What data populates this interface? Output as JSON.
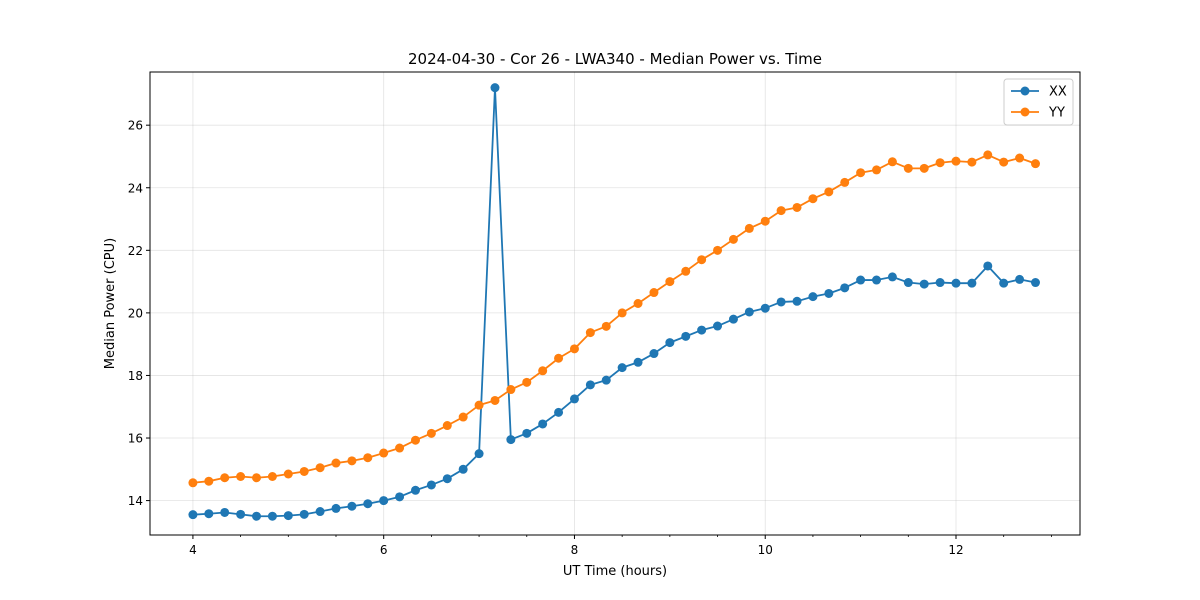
{
  "chart_data": {
    "type": "line",
    "title": "2024-04-30 - Cor 26 - LWA340 - Median Power vs. Time",
    "xlabel": "UT Time (hours)",
    "ylabel": "Median Power (CPU)",
    "xlim": [
      3.55,
      13.3
    ],
    "ylim": [
      12.9,
      27.7
    ],
    "xticks": [
      4,
      6,
      8,
      10,
      12
    ],
    "yticks": [
      14,
      16,
      18,
      20,
      22,
      24,
      26
    ],
    "grid": true,
    "legend_position": "top-right",
    "x": [
      4.0,
      4.1667,
      4.3333,
      4.5,
      4.6667,
      4.8333,
      5.0,
      5.1667,
      5.3333,
      5.5,
      5.6667,
      5.8333,
      6.0,
      6.1667,
      6.3333,
      6.5,
      6.6667,
      6.8333,
      7.0,
      7.1667,
      7.3333,
      7.5,
      7.6667,
      7.8333,
      8.0,
      8.1667,
      8.3333,
      8.5,
      8.6667,
      8.8333,
      9.0,
      9.1667,
      9.3333,
      9.5,
      9.6667,
      9.8333,
      10.0,
      10.1667,
      10.3333,
      10.5,
      10.6667,
      10.8333,
      11.0,
      11.1667,
      11.3333,
      11.5,
      11.6667,
      11.8333,
      12.0,
      12.1667,
      12.3333,
      12.5,
      12.6667,
      12.8333
    ],
    "series": [
      {
        "name": "XX",
        "color": "#1f77b4",
        "values": [
          13.55,
          13.58,
          13.62,
          13.56,
          13.5,
          13.5,
          13.52,
          13.56,
          13.65,
          13.75,
          13.82,
          13.9,
          14.0,
          14.12,
          14.33,
          14.5,
          14.7,
          15.0,
          15.5,
          27.2,
          15.95,
          16.15,
          16.45,
          16.82,
          17.25,
          17.7,
          17.85,
          18.25,
          18.42,
          18.7,
          19.05,
          19.25,
          19.45,
          19.58,
          19.8,
          20.03,
          20.15,
          20.35,
          20.37,
          20.52,
          20.62,
          20.8,
          21.05,
          21.05,
          21.15,
          20.97,
          20.92,
          20.97,
          20.95,
          20.95,
          21.5,
          20.95,
          21.07,
          20.97
        ]
      },
      {
        "name": "YY",
        "color": "#ff7f0e",
        "values": [
          14.57,
          14.62,
          14.73,
          14.77,
          14.73,
          14.77,
          14.85,
          14.93,
          15.05,
          15.2,
          15.27,
          15.37,
          15.52,
          15.68,
          15.93,
          16.15,
          16.4,
          16.67,
          17.05,
          17.2,
          17.55,
          17.78,
          18.15,
          18.55,
          18.85,
          19.37,
          19.57,
          20.0,
          20.3,
          20.65,
          21.0,
          21.33,
          21.7,
          22.0,
          22.35,
          22.7,
          22.93,
          23.27,
          23.37,
          23.65,
          23.87,
          24.17,
          24.48,
          24.57,
          24.83,
          24.62,
          24.62,
          24.8,
          24.85,
          24.82,
          25.05,
          24.82,
          24.95,
          24.77
        ]
      }
    ]
  }
}
